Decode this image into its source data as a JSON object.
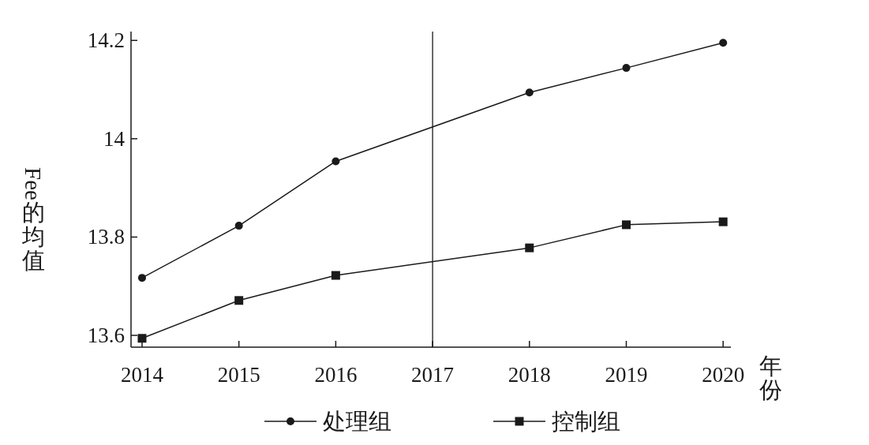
{
  "chart_data": {
    "type": "line",
    "xlabel": "年份",
    "ylabel": "Fee的均值",
    "xlim": [
      2013.886,
      2020.08
    ],
    "xticks": [
      2014,
      2015,
      2016,
      2017,
      2018,
      2019,
      2020
    ],
    "ylim": [
      13.576,
      14.218
    ],
    "yticks": [
      {
        "value": 13.6,
        "label": "13.6"
      },
      {
        "value": 13.8,
        "label": "13.8"
      },
      {
        "value": 14,
        "label": "14"
      },
      {
        "value": 14.2,
        "label": "14.2"
      }
    ],
    "series": [
      {
        "name": "处理组",
        "color": "#1a1a1a",
        "marker": "circle",
        "x": [
          2014,
          2015,
          2016,
          2018,
          2019,
          2020
        ],
        "values": [
          13.717,
          13.823,
          13.954,
          14.094,
          14.144,
          14.195
        ]
      },
      {
        "name": "控制组",
        "color": "#1a1a1a",
        "marker": "square",
        "x": [
          2014,
          2015,
          2016,
          2018,
          2019,
          2020
        ],
        "values": [
          13.594,
          13.671,
          13.722,
          13.778,
          13.825,
          13.831
        ]
      }
    ],
    "ref_lines": [
      {
        "axis": "x",
        "value": 2017,
        "color": "#1a1a1a"
      }
    ],
    "legend": "bottom",
    "grid": false
  }
}
